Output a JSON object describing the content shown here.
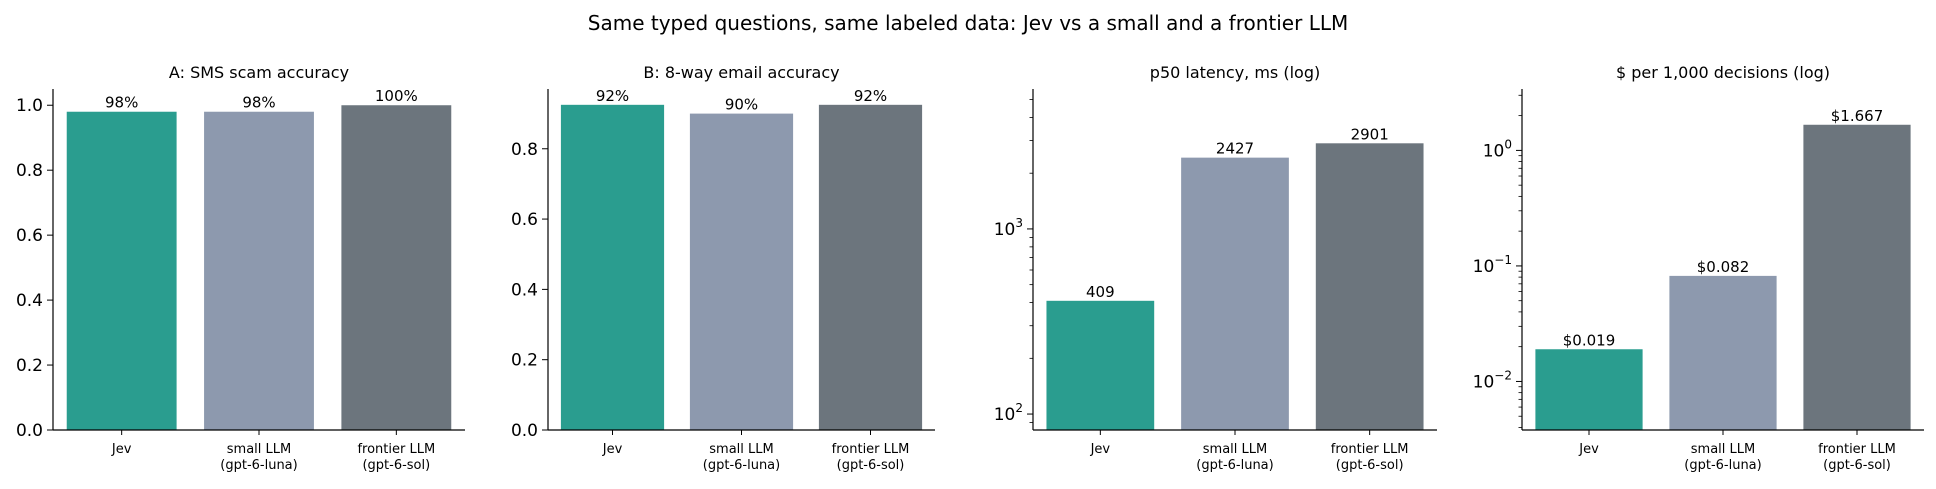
{
  "figure": {
    "suptitle": "Same typed questions, same labeled data: Jev vs a small and a frontier LLM"
  },
  "colors": {
    "jev": "#2a9d8f",
    "small_llm": "#8d99ae",
    "frontier_llm": "#6c757d",
    "axis": "#000000"
  },
  "chart_data": [
    {
      "type": "bar",
      "title": "A: SMS scam accuracy",
      "categories": [
        "Jev",
        "small LLM\n(gpt-6-luna)",
        "frontier LLM\n(gpt-6-sol)"
      ],
      "values": [
        0.98,
        0.98,
        1.0
      ],
      "data_labels": [
        "98%",
        "98%",
        "100%"
      ],
      "scale": "linear",
      "ylim": [
        0,
        1.05
      ],
      "yticks": [
        0.0,
        0.2,
        0.4,
        0.6,
        0.8,
        1.0
      ],
      "ytick_labels": [
        "0.0",
        "0.2",
        "0.4",
        "0.6",
        "0.8",
        "1.0"
      ],
      "grid": false
    },
    {
      "type": "bar",
      "title": "B: 8-way email accuracy",
      "categories": [
        "Jev",
        "small LLM\n(gpt-6-luna)",
        "frontier LLM\n(gpt-6-sol)"
      ],
      "values": [
        0.925,
        0.9,
        0.925
      ],
      "data_labels": [
        "92%",
        "90%",
        "92%"
      ],
      "scale": "linear",
      "ylim": [
        0,
        0.97
      ],
      "yticks": [
        0.0,
        0.2,
        0.4,
        0.6,
        0.8
      ],
      "ytick_labels": [
        "0.0",
        "0.2",
        "0.4",
        "0.6",
        "0.8"
      ],
      "grid": false
    },
    {
      "type": "bar",
      "title": "p50 latency, ms (log)",
      "categories": [
        "Jev",
        "small LLM\n(gpt-6-luna)",
        "frontier LLM\n(gpt-6-sol)"
      ],
      "values": [
        409,
        2427,
        2901
      ],
      "data_labels": [
        "409",
        "2427",
        "2901"
      ],
      "scale": "log",
      "ylim": [
        82,
        5700
      ],
      "yticks": [
        100,
        1000
      ],
      "ytick_labels": [
        [
          "10",
          "2"
        ],
        [
          "10",
          "3"
        ]
      ],
      "grid": false
    },
    {
      "type": "bar",
      "title": "$ per 1,000 decisions (log)",
      "categories": [
        "Jev",
        "small LLM\n(gpt-6-luna)",
        "frontier LLM\n(gpt-6-sol)"
      ],
      "values": [
        0.019,
        0.082,
        1.667
      ],
      "data_labels": [
        "$0.019",
        "$0.082",
        "$1.667"
      ],
      "scale": "log",
      "ylim": [
        0.0038,
        3.4
      ],
      "yticks": [
        0.01,
        0.1,
        1
      ],
      "ytick_labels": [
        [
          "10",
          "−2"
        ],
        [
          "10",
          "−1"
        ],
        [
          "10",
          "0"
        ]
      ],
      "grid": false
    }
  ]
}
